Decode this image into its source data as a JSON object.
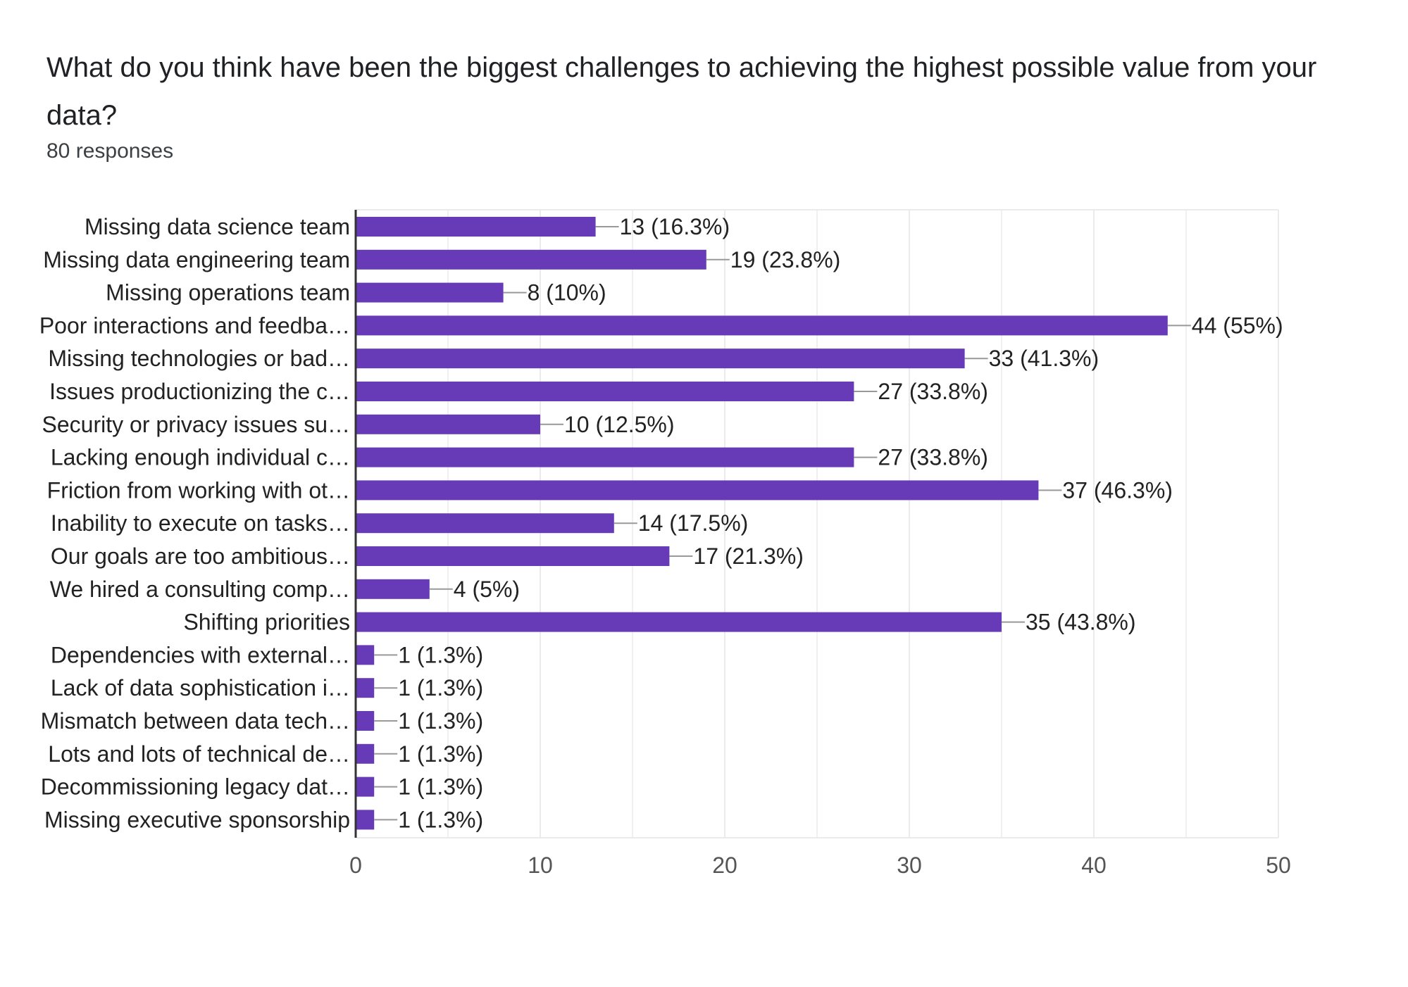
{
  "question": {
    "title": "What do you think have been the biggest challenges to achieving the highest possible value from your data?",
    "responses": "80 responses"
  },
  "colors": {
    "bar": "#673ab7",
    "grid": "#ebebeb",
    "axis": "#333333",
    "leader": "#999999"
  },
  "chart_data": {
    "type": "bar",
    "orientation": "horizontal",
    "categories": [
      "Missing data science team",
      "Missing data engineering team",
      "Missing operations team",
      "Poor interactions and feedba…",
      "Missing technologies or bad…",
      "Issues productionizing the c…",
      "Security or privacy issues su…",
      "Lacking enough individual c…",
      "Friction from working with ot…",
      "Inability to execute on tasks…",
      "Our goals are too ambitious…",
      "We hired a consulting comp…",
      "Shifting priorities",
      "Dependencies with external…",
      "Lack of data sophistication i…",
      "Mismatch between data tech…",
      "Lots and lots of technical de…",
      "Decommissioning legacy dat…",
      "Missing executive sponsorship"
    ],
    "values": [
      13,
      19,
      8,
      44,
      33,
      27,
      10,
      27,
      37,
      14,
      17,
      4,
      35,
      1,
      1,
      1,
      1,
      1,
      1
    ],
    "value_labels": [
      "13 (16.3%)",
      "19 (23.8%)",
      "8 (10%)",
      "44 (55%)",
      "33 (41.3%)",
      "27 (33.8%)",
      "10 (12.5%)",
      "27 (33.8%)",
      "37 (46.3%)",
      "14 (17.5%)",
      "17 (21.3%)",
      "4 (5%)",
      "35 (43.8%)",
      "1 (1.3%)",
      "1 (1.3%)",
      "1 (1.3%)",
      "1 (1.3%)",
      "1 (1.3%)",
      "1 (1.3%)"
    ],
    "xlim": [
      0,
      50
    ],
    "xticks": [
      "0",
      "10",
      "20",
      "30",
      "40",
      "50"
    ],
    "grid": true
  }
}
